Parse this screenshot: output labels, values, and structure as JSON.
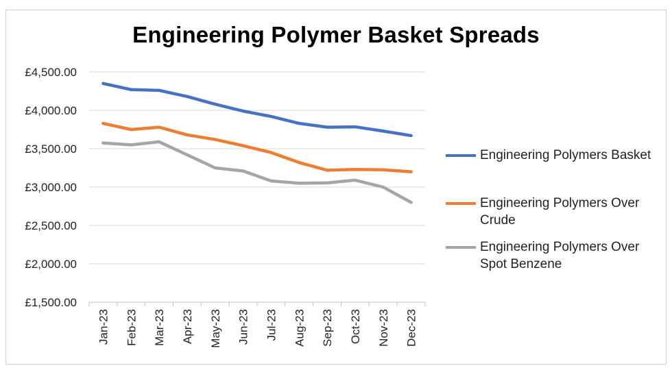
{
  "chart_data": {
    "type": "line",
    "title": "Engineering Polymer Basket Spreads",
    "xlabel": "",
    "ylabel": "",
    "ylim": [
      1500,
      4500
    ],
    "yticks": [
      "£4,500.00",
      "£4,000.00",
      "£3,500.00",
      "£3,000.00",
      "£2,500.00",
      "£2,000.00",
      "£1,500.00"
    ],
    "ytick_values": [
      4500,
      4000,
      3500,
      3000,
      2500,
      2000,
      1500
    ],
    "categories": [
      "Jan-23",
      "Feb-23",
      "Mar-23",
      "Apr-23",
      "May-23",
      "Jun-23",
      "Jul-23",
      "Aug-23",
      "Sep-23",
      "Oct-23",
      "Nov-23",
      "Dec-23"
    ],
    "grid": "horizontal",
    "legend_position": "right",
    "series": [
      {
        "name": "Engineering Polymers Basket",
        "color": "#4472C4",
        "values": [
          4350,
          4270,
          4260,
          4180,
          4080,
          3990,
          3920,
          3830,
          3780,
          3785,
          3730,
          3670
        ]
      },
      {
        "name": "Engineering Polymers Over Crude",
        "color": "#ED7D31",
        "values": [
          3830,
          3750,
          3780,
          3680,
          3620,
          3540,
          3450,
          3320,
          3220,
          3230,
          3225,
          3200
        ]
      },
      {
        "name": "Engineering Polymers Over Spot Benzene",
        "color": "#A5A5A5",
        "values": [
          3575,
          3550,
          3590,
          3420,
          3250,
          3210,
          3080,
          3050,
          3055,
          3090,
          3000,
          2800
        ]
      }
    ]
  }
}
